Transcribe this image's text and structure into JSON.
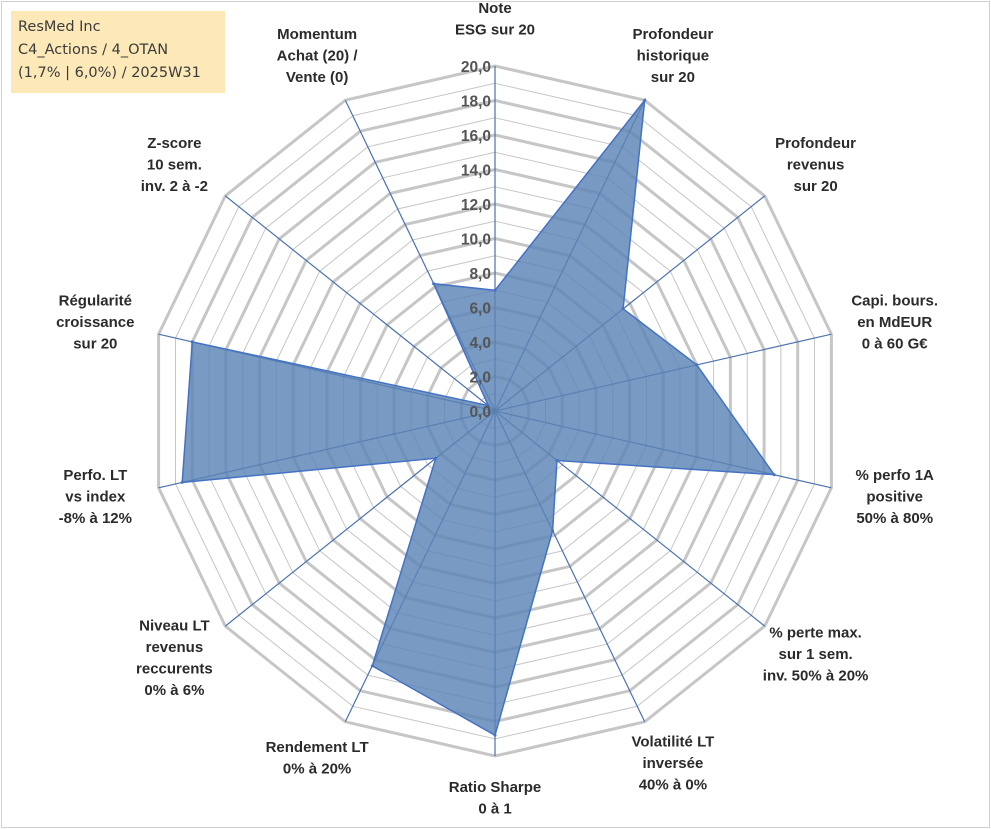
{
  "header": {
    "lines": [
      "ResMed Inc",
      "C4_Actions / 4_OTAN",
      "(1,7% | 6,0%) / 2025W31"
    ]
  },
  "chart_data": {
    "type": "radar",
    "title": "",
    "axes": [
      [
        "Note",
        "ESG sur 20"
      ],
      [
        "Profondeur",
        "historique",
        "sur 20"
      ],
      [
        "Profondeur",
        "revenus",
        "sur 20"
      ],
      [
        "Capi. bours.",
        "en MdEUR",
        "0 à 60 G€"
      ],
      [
        "% perfo 1A",
        "positive",
        "50% à 80%"
      ],
      [
        "% perte max.",
        "sur 1 sem.",
        "inv. 50% à 20%"
      ],
      [
        "Volatilité LT",
        "inversée",
        "40% à 0%"
      ],
      [
        "Ratio Sharpe",
        "0 à 1"
      ],
      [
        "Rendement LT",
        "0% à 20%"
      ],
      [
        "Niveau LT",
        "revenus",
        "reccurents",
        "0% à 6%"
      ],
      [
        "Perfo. LT",
        "vs index",
        "-8% à 12%"
      ],
      [
        "Régularité",
        "croissance",
        "sur 20"
      ],
      [
        "Z-score",
        "10 sem.",
        "inv. 2 à -2"
      ],
      [
        "Momentum",
        "Achat (20) /",
        "Vente (0)"
      ]
    ],
    "values": [
      7.0,
      20.0,
      9.5,
      12.0,
      16.6,
      4.6,
      7.7,
      18.8,
      16.4,
      4.4,
      18.6,
      18.0,
      0.5,
      8.2
    ],
    "rmin": 0,
    "rmax": 20,
    "tick_step": 2,
    "tick_labels": [
      "0,0",
      "2,0",
      "4,0",
      "6,0",
      "8,0",
      "10,0",
      "12,0",
      "14,0",
      "16,0",
      "18,0",
      "20,0"
    ],
    "colors": {
      "fill": "#5b84b5",
      "stroke": "#4472c4",
      "grid": "#c6c6c6",
      "spoke": "#4a72b0"
    }
  }
}
